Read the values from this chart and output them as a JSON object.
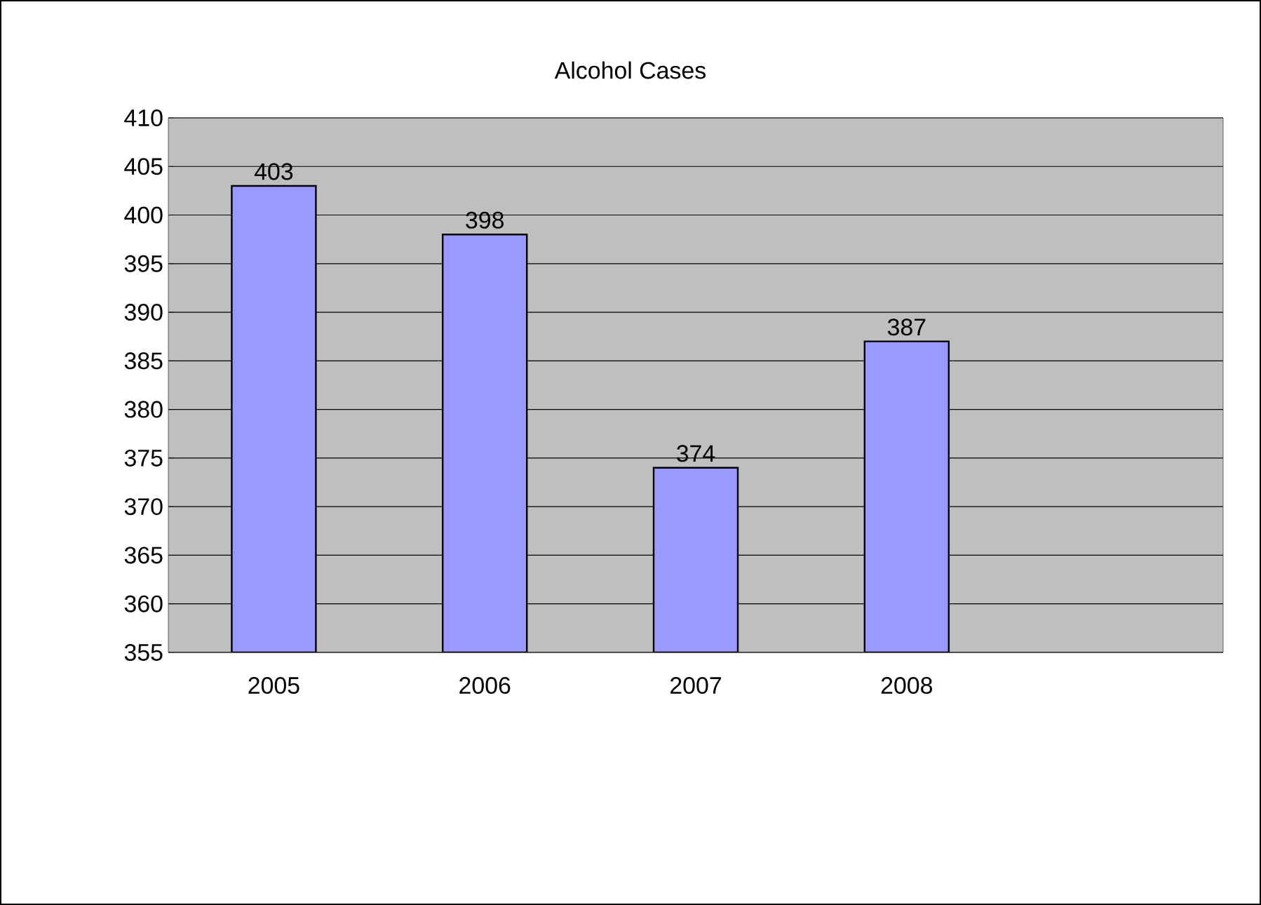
{
  "chart_data": {
    "type": "bar",
    "title": "Alcohol Cases",
    "categories": [
      "2005",
      "2006",
      "2007",
      "2008",
      null
    ],
    "values": [
      403,
      398,
      374,
      387,
      null
    ],
    "color": "#9999ff",
    "ylim": [
      355,
      410
    ],
    "yticks": [
      355,
      360,
      365,
      370,
      375,
      380,
      385,
      390,
      395,
      400,
      405,
      410
    ],
    "grid": "y",
    "data_labels": true
  }
}
